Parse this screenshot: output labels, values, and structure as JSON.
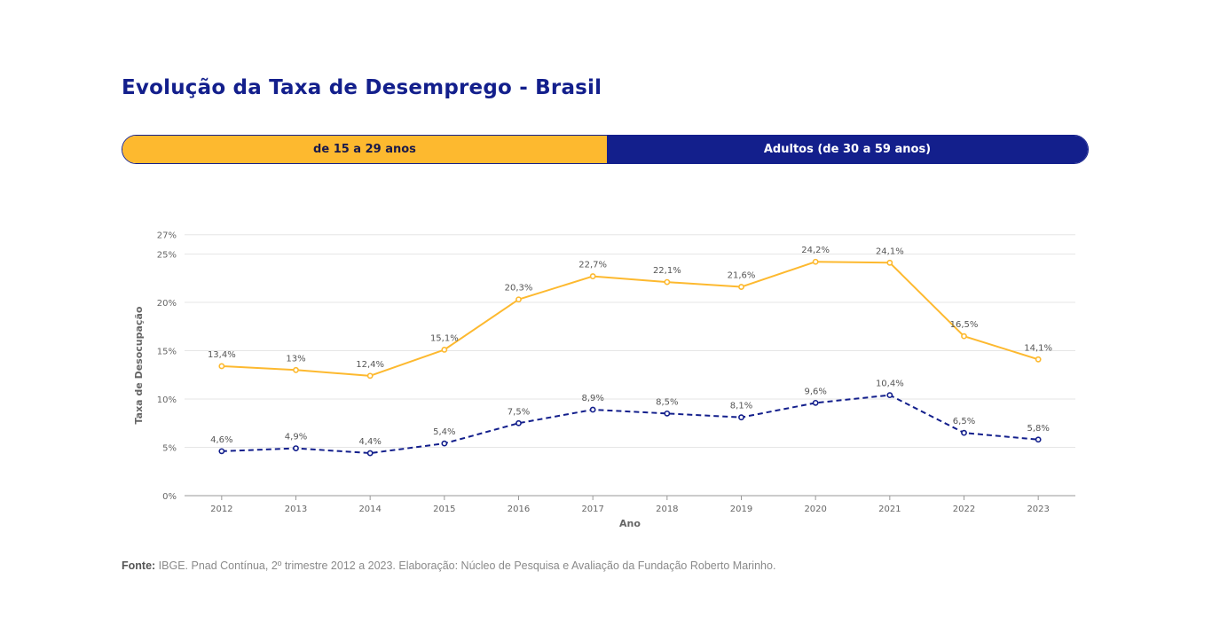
{
  "title": "Evolução da Taxa de Desemprego - Brasil",
  "legend": {
    "young_label": "de 15 a 29 anos",
    "adult_label": "Adultos (de 30 a 59 anos)"
  },
  "colors": {
    "young": "#fdb92f",
    "adult": "#131f8c",
    "title": "#131f8c"
  },
  "source": {
    "label": "Fonte:",
    "text": "IBGE. Pnad Contínua, 2º trimestre 2012 a 2023. Elaboração: Núcleo de Pesquisa e Avaliação da Fundação Roberto Marinho."
  },
  "chart_data": {
    "type": "line",
    "xlabel": "Ano",
    "ylabel": "Taxa de Desocupação",
    "ylim": [
      0,
      27
    ],
    "yticks": [
      0,
      5,
      10,
      15,
      20,
      25,
      27
    ],
    "ytick_labels": [
      "0%",
      "5%",
      "10%",
      "15%",
      "20%",
      "25%",
      "27%"
    ],
    "grid": true,
    "categories": [
      "2012",
      "2013",
      "2014",
      "2015",
      "2016",
      "2017",
      "2018",
      "2019",
      "2020",
      "2021",
      "2022",
      "2023"
    ],
    "series": [
      {
        "name": "de 15 a 29 anos",
        "style": "solid",
        "values": [
          13.4,
          13,
          12.4,
          15.1,
          20.3,
          22.7,
          22.1,
          21.6,
          24.2,
          24.1,
          16.5,
          14.1
        ],
        "labels": [
          "13,4%",
          "13%",
          "12,4%",
          "15,1%",
          "20,3%",
          "22,7%",
          "22,1%",
          "21,6%",
          "24,2%",
          "24,1%",
          "16,5%",
          "14,1%"
        ]
      },
      {
        "name": "Adultos (de 30 a 59 anos)",
        "style": "dashed",
        "values": [
          4.6,
          4.9,
          4.4,
          5.4,
          7.5,
          8.9,
          8.5,
          8.1,
          9.6,
          10.4,
          6.5,
          5.8
        ],
        "labels": [
          "4,6%",
          "4,9%",
          "4,4%",
          "5,4%",
          "7,5%",
          "8,9%",
          "8,5%",
          "8,1%",
          "9,6%",
          "10,4%",
          "6,5%",
          "5,8%"
        ]
      }
    ]
  }
}
